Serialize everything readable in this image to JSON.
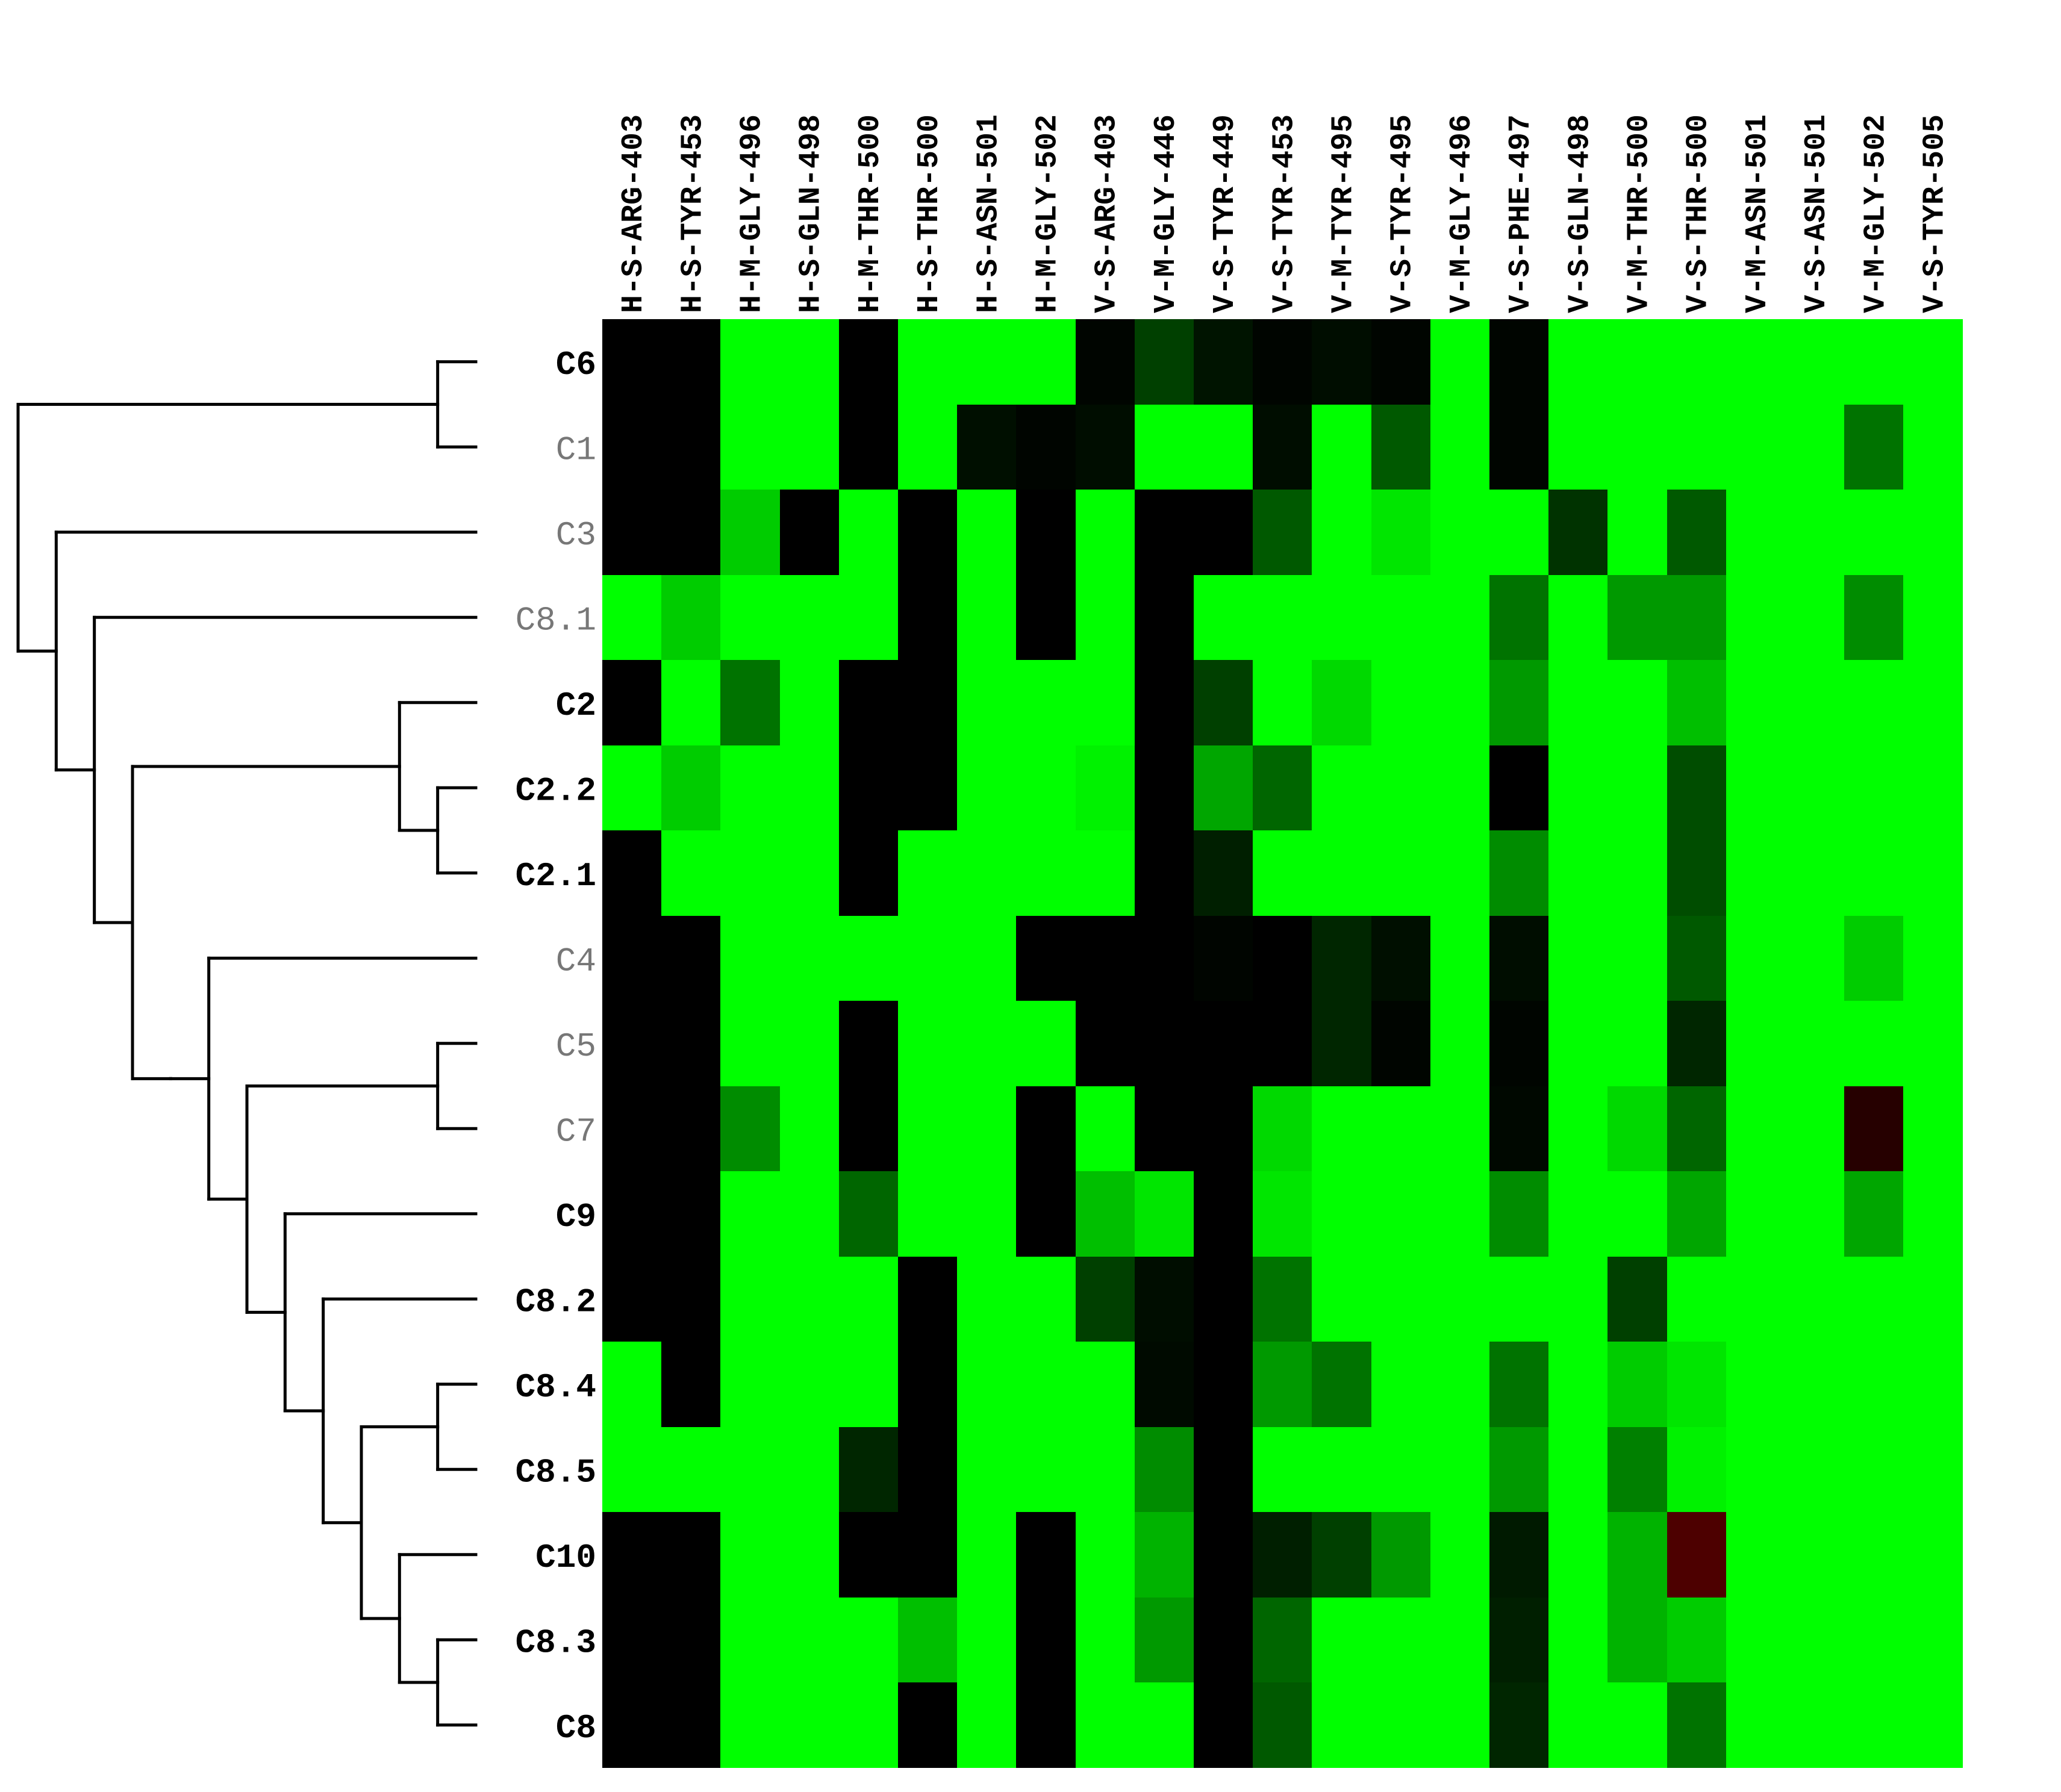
{
  "chart_data": {
    "type": "heatmap",
    "title": "",
    "columns": [
      "H-S-ARG-403",
      "H-S-TYR-453",
      "H-M-GLY-496",
      "H-S-GLN-498",
      "H-M-THR-500",
      "H-S-THR-500",
      "H-S-ASN-501",
      "H-M-GLY-502",
      "V-S-ARG-403",
      "V-M-GLY-446",
      "V-S-TYR-449",
      "V-S-TYR-453",
      "V-M-TYR-495",
      "V-S-TYR-495",
      "V-M-GLY-496",
      "V-S-PHE-497",
      "V-S-GLN-498",
      "V-M-THR-500",
      "V-S-THR-500",
      "V-M-ASN-501",
      "V-S-ASN-501",
      "V-M-GLY-502",
      "V-S-TYR-505"
    ],
    "rows": [
      {
        "label": "C6",
        "bold": true
      },
      {
        "label": "C1",
        "bold": false
      },
      {
        "label": "C3",
        "bold": false
      },
      {
        "label": "C8.1",
        "bold": false
      },
      {
        "label": "C2",
        "bold": true
      },
      {
        "label": "C2.2",
        "bold": true
      },
      {
        "label": "C2.1",
        "bold": true
      },
      {
        "label": "C4",
        "bold": false
      },
      {
        "label": "C5",
        "bold": false
      },
      {
        "label": "C7",
        "bold": false
      },
      {
        "label": "C9",
        "bold": true
      },
      {
        "label": "C8.2",
        "bold": true
      },
      {
        "label": "C8.4",
        "bold": true
      },
      {
        "label": "C8.5",
        "bold": true
      },
      {
        "label": "C10",
        "bold": true
      },
      {
        "label": "C8.3",
        "bold": true
      },
      {
        "label": "C8",
        "bold": true
      }
    ],
    "color_scale": {
      "low": "#000000",
      "high": "#00ff00",
      "negative": "#ff0000",
      "range": [
        -1,
        1
      ]
    },
    "values": [
      [
        0,
        0,
        1,
        1,
        0,
        1,
        1,
        1,
        0.02,
        0.25,
        0.08,
        0.02,
        0.05,
        0.02,
        1,
        0.02,
        1,
        1,
        1,
        1,
        1,
        1,
        1
      ],
      [
        0,
        0,
        1,
        1,
        0,
        1,
        0.06,
        0.02,
        0.05,
        1,
        1,
        0.05,
        1,
        0.35,
        1,
        0.02,
        1,
        1,
        1,
        1,
        1,
        0.45,
        1
      ],
      [
        0,
        0,
        0.8,
        0,
        1,
        0,
        1,
        0,
        1,
        0,
        0,
        0.35,
        1,
        0.9,
        1,
        1,
        0.2,
        1,
        0.35,
        1,
        1,
        1,
        1
      ],
      [
        1,
        0.8,
        1,
        1,
        1,
        0,
        1,
        0,
        1,
        0,
        1,
        1,
        1,
        1,
        1,
        0.45,
        1,
        0.6,
        0.6,
        1,
        1,
        0.55,
        1
      ],
      [
        0,
        1,
        0.45,
        1,
        0,
        0,
        1,
        1,
        1,
        0,
        0.25,
        1,
        0.85,
        1,
        1,
        0.6,
        1,
        1,
        0.75,
        1,
        1,
        1,
        1
      ],
      [
        1,
        0.8,
        1,
        1,
        0,
        0,
        1,
        1,
        0.95,
        0,
        0.65,
        0.4,
        1,
        1,
        1,
        0,
        1,
        1,
        0.3,
        1,
        1,
        1,
        1
      ],
      [
        0,
        1,
        1,
        1,
        0,
        1,
        1,
        1,
        1,
        0,
        0.12,
        1,
        1,
        1,
        1,
        0.55,
        1,
        1,
        0.3,
        1,
        1,
        1,
        1
      ],
      [
        0,
        0,
        1,
        1,
        1,
        1,
        1,
        0,
        0,
        0,
        0.02,
        0,
        0.15,
        0.06,
        1,
        0.05,
        1,
        1,
        0.35,
        1,
        1,
        0.8,
        1
      ],
      [
        0,
        0,
        1,
        1,
        0,
        1,
        1,
        1,
        0,
        0,
        0,
        0,
        0.15,
        0.02,
        1,
        0.02,
        1,
        1,
        0.15,
        1,
        1,
        1,
        1
      ],
      [
        0,
        0,
        0.55,
        1,
        0,
        1,
        1,
        0,
        1,
        0,
        0,
        0.85,
        1,
        1,
        1,
        0.03,
        1,
        0.85,
        0.4,
        1,
        1,
        -0.15,
        1
      ],
      [
        0,
        0,
        1,
        1,
        0.4,
        1,
        1,
        0,
        0.75,
        0.9,
        0,
        0.9,
        1,
        1,
        1,
        0.55,
        1,
        1,
        0.65,
        1,
        1,
        0.65,
        1
      ],
      [
        0,
        0,
        1,
        1,
        1,
        0,
        1,
        1,
        0.25,
        0.05,
        0,
        0.45,
        1,
        1,
        1,
        1,
        1,
        0.25,
        1,
        1,
        1,
        1,
        1
      ],
      [
        1,
        0,
        1,
        1,
        1,
        0,
        1,
        1,
        1,
        0.04,
        0,
        0.6,
        0.45,
        1,
        1,
        0.45,
        1,
        0.8,
        0.9,
        1,
        1,
        1,
        1
      ],
      [
        1,
        1,
        1,
        1,
        0.15,
        0,
        1,
        1,
        1,
        0.55,
        0,
        1,
        1,
        1,
        1,
        0.6,
        1,
        0.5,
        0.95,
        1,
        1,
        1,
        1
      ],
      [
        0,
        0,
        1,
        1,
        0,
        0,
        1,
        0,
        1,
        0.7,
        0,
        0.12,
        0.25,
        0.6,
        1,
        0.1,
        1,
        0.7,
        -0.3,
        1,
        1,
        1,
        1
      ],
      [
        0,
        0,
        1,
        1,
        1,
        0.75,
        1,
        0,
        1,
        0.6,
        0,
        0.4,
        1,
        1,
        1,
        0.12,
        1,
        0.7,
        0.8,
        1,
        1,
        1,
        1
      ],
      [
        0,
        0,
        1,
        1,
        1,
        0,
        1,
        0,
        1,
        1,
        0,
        0.35,
        1,
        1,
        1,
        0.15,
        1,
        1,
        0.45,
        1,
        1,
        1,
        1
      ]
    ],
    "dendrogram": "((C6,C1),(C3,(C8.1,((C2,(C2.2,C2.1)),((C4,((C5,C7),(C9,(C8.2,((C8.4,C8.5),(C10,(C8.3,C8)))))))))))))"
  }
}
